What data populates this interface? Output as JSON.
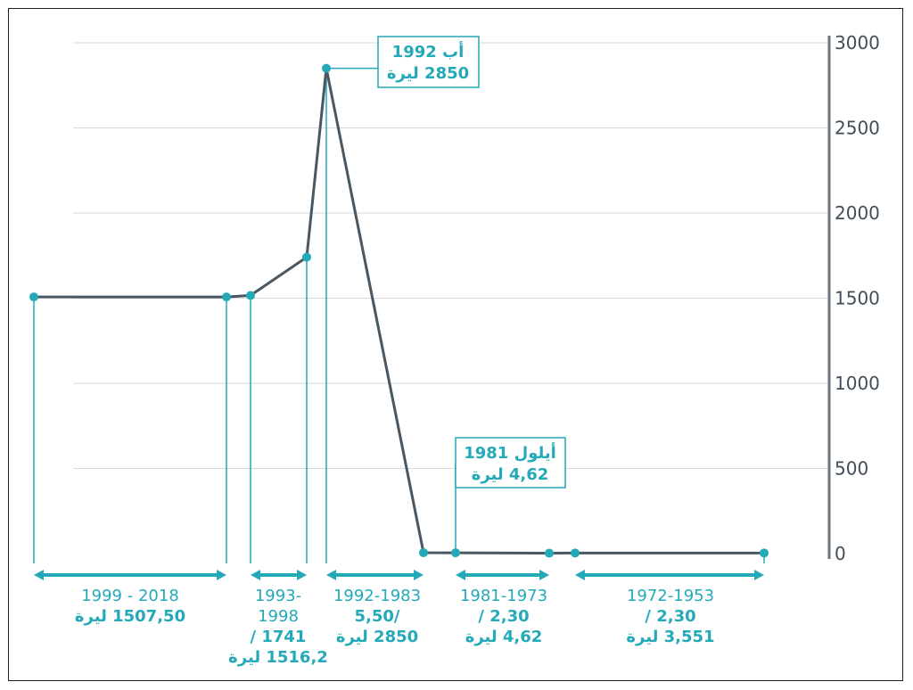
{
  "chart_data": {
    "type": "line",
    "title": "",
    "xlabel": "",
    "ylabel": "",
    "ylim": [
      0,
      3000
    ],
    "yticks": [
      0,
      500,
      1000,
      1500,
      2000,
      2500,
      3000
    ],
    "grid": true,
    "yaxis_position": "right",
    "x_direction": "right-to-left",
    "series": [
      {
        "points": [
          {
            "x": 1953,
            "y": 3.551
          },
          {
            "x": 1972,
            "y": 3.551
          },
          {
            "x": 1973,
            "y": 2.3
          },
          {
            "x": 1981,
            "y": 4.62
          },
          {
            "x": 1983,
            "y": 5.5
          },
          {
            "x": 1992,
            "y": 2850
          },
          {
            "x": 1993,
            "y": 1741
          },
          {
            "x": 1998,
            "y": 1516.2
          },
          {
            "x": 1999,
            "y": 1507.5
          },
          {
            "x": 2018,
            "y": 1507.5
          }
        ]
      }
    ],
    "callouts": [
      {
        "line1": "أب 1992",
        "line2": "2850 ليرة"
      },
      {
        "line1": "أيلول 1981",
        "line2": "4,62 ليرة"
      }
    ],
    "periods": [
      {
        "lines": [
          "2018 - 1999",
          "1507,50 ليرة"
        ]
      },
      {
        "lines": [
          "-1993",
          "1998",
          "1741 /",
          "1516,2 ليرة"
        ]
      },
      {
        "lines": [
          "1992-1983",
          "/5,50",
          "2850 ليرة"
        ]
      },
      {
        "lines": [
          "1981-1973",
          "2,30 /",
          "4,62 ليرة"
        ]
      },
      {
        "lines": [
          "1972-1953",
          "2,30 /",
          "3,551 ليرة"
        ]
      }
    ],
    "colors": {
      "line": "#4a5660",
      "accent": "#24a9b8",
      "grid": "#d9d9d9",
      "axis": "#6e7479",
      "tick_text": "#414d57"
    }
  }
}
